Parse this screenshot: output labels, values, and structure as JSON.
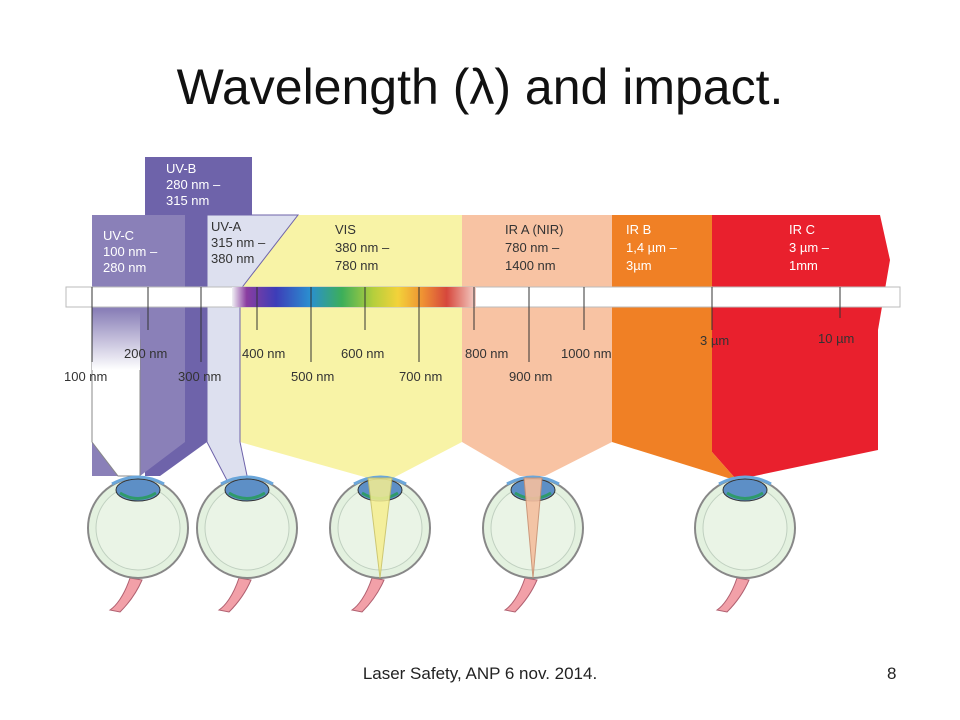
{
  "slide": {
    "title": "Wavelength (λ) and impact.",
    "footer": "Laser Safety, ANP 6 nov. 2014.",
    "page_number": "8"
  },
  "bands": {
    "uvb": {
      "name": "UV-B",
      "line1": "280 nm –",
      "line2": "315 nm",
      "color": "#6e63aa"
    },
    "uvc": {
      "name": "UV-C",
      "line1": "100 nm –",
      "line2": "280 nm",
      "color": "#8a80b8"
    },
    "uva": {
      "name": "UV-A",
      "line1": "315 nm –",
      "line2": "380 nm",
      "color": "#dde0ef"
    },
    "vis": {
      "name": "VIS",
      "line1": "380 nm –",
      "line2": "780 nm",
      "color": "#f8f3a6"
    },
    "ira": {
      "name": "IR A (NIR)",
      "line1": "780 nm –",
      "line2": "1400 nm",
      "color": "#f8c3a3"
    },
    "irb": {
      "name": "IR B",
      "line1": "1,4 µm –",
      "line2": "3µm",
      "color": "#f08025"
    },
    "irc": {
      "name": "IR C",
      "line1": "3 µm –",
      "line2": "1mm",
      "color": "#e9202d"
    }
  },
  "scale_upper": {
    "t200": "200 nm",
    "t400": "400 nm",
    "t600": "600 nm",
    "t800": "800 nm",
    "t1000": "1000 nm",
    "t3um": "3 µm",
    "t10um": "10 µm"
  },
  "scale_lower": {
    "t100": "100 nm",
    "t300": "300 nm",
    "t500": "500 nm",
    "t700": "700 nm",
    "t900": "900 nm"
  }
}
